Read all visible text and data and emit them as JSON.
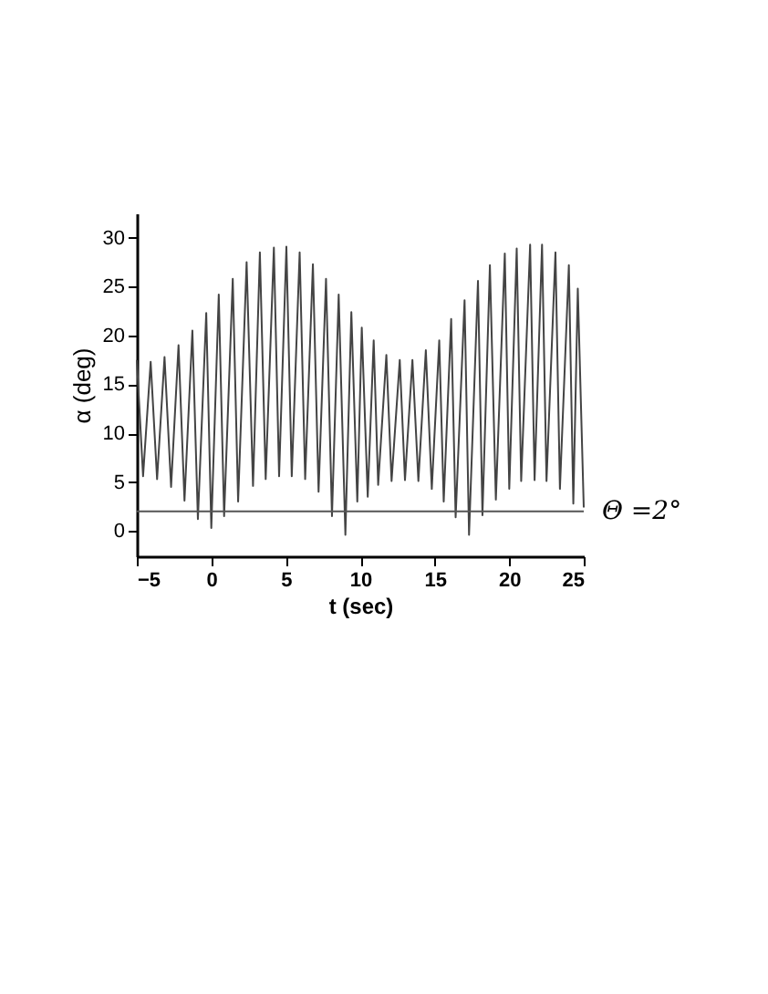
{
  "chart_data": {
    "type": "line",
    "xlabel": "t (sec)",
    "ylabel": "α (deg)",
    "x": [
      -5.0,
      -4.58,
      -4.07,
      -3.64,
      -3.14,
      -2.7,
      -2.2,
      -1.8,
      -1.27,
      -0.9,
      -0.34,
      0.0,
      0.5,
      0.86,
      1.44,
      1.8,
      2.37,
      2.8,
      3.26,
      3.65,
      4.2,
      4.55,
      5.04,
      5.4,
      5.93,
      6.3,
      6.82,
      7.2,
      7.7,
      8.1,
      8.55,
      9.0,
      9.4,
      9.8,
      10.1,
      10.5,
      10.9,
      11.2,
      11.75,
      12.1,
      12.65,
      13.0,
      13.5,
      13.9,
      14.4,
      14.8,
      15.3,
      15.6,
      16.1,
      16.4,
      17.0,
      17.3,
      17.9,
      18.2,
      18.7,
      19.1,
      19.7,
      20.0,
      20.5,
      20.8,
      21.4,
      21.7,
      22.2,
      22.5,
      23.1,
      23.4,
      24.0,
      24.3,
      24.6,
      25.0
    ],
    "series": [
      {
        "color": "#444444",
        "values": [
          17.5,
          5.6,
          17.3,
          5.3,
          17.8,
          4.5,
          19,
          3.1,
          20.5,
          1.2,
          22.3,
          0.3,
          24.2,
          1.5,
          25.8,
          3,
          27.5,
          4.6,
          28.5,
          5.3,
          29,
          5.6,
          29.1,
          5.6,
          28.5,
          5.3,
          27.3,
          4,
          25.8,
          1.5,
          24.2,
          -0.4,
          22.4,
          3,
          20.8,
          3.5,
          19.5,
          4.7,
          18,
          5.1,
          17.5,
          5.2,
          17.5,
          5.1,
          18.5,
          4.3,
          19.5,
          3,
          21.7,
          1.4,
          23.6,
          -0.4,
          25.6,
          1.6,
          27.2,
          3.2,
          28.4,
          4.3,
          28.9,
          5.1,
          29.3,
          5.2,
          29.3,
          5.1,
          28.5,
          4.3,
          27.2,
          2.8,
          24.8,
          2.4
        ]
      }
    ],
    "xlim": [
      -5,
      25
    ],
    "xticks": [
      -5,
      0,
      5,
      10,
      15,
      20,
      25
    ],
    "ylim": [
      -2.6,
      32.5
    ],
    "yticks": [
      0,
      5,
      10,
      15,
      20,
      25,
      30
    ],
    "ref_lines": [
      {
        "axis": "y",
        "value": 2,
        "label": "Θ =2°",
        "color": "#555555"
      }
    ],
    "grid": false,
    "marker": "none",
    "line_style": "solid"
  }
}
